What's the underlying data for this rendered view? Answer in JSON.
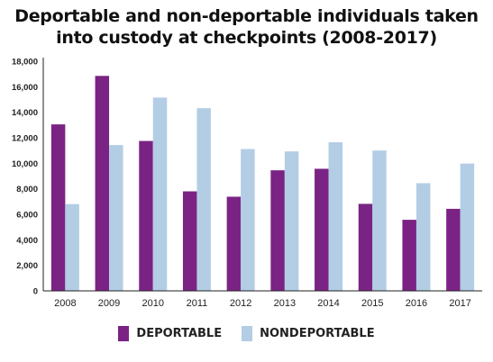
{
  "chart_data": {
    "type": "bar",
    "title_lines": [
      "Deportable and non-deportable individuals taken",
      "into custody at checkpoints (2008-2017)"
    ],
    "title": "Deportable and non-deportable individuals taken into custody at checkpoints (2008-2017)",
    "xlabel": "",
    "ylabel": "",
    "ylim": [
      0,
      18000
    ],
    "yticks": [
      0,
      2000,
      4000,
      6000,
      8000,
      10000,
      12000,
      14000,
      16000,
      18000
    ],
    "ytick_labels": [
      "0",
      "2,000",
      "4,000",
      "6,000",
      "8,000",
      "10,000",
      "12,000",
      "14,000",
      "16,000",
      "18,000"
    ],
    "categories": [
      "2008",
      "2009",
      "2010",
      "2011",
      "2012",
      "2013",
      "2014",
      "2015",
      "2016",
      "2017"
    ],
    "grid": false,
    "legend_position": "bottom",
    "series": [
      {
        "name": "DEPORTABLE",
        "color": "#7b2384",
        "values": [
          13050,
          16850,
          11750,
          7800,
          7380,
          9450,
          9570,
          6820,
          5570,
          6430
        ]
      },
      {
        "name": "NONDEPORTABLE",
        "color": "#b3cde5",
        "values": [
          6800,
          11430,
          15150,
          14320,
          11120,
          10930,
          11650,
          11000,
          8440,
          9980
        ]
      }
    ]
  }
}
